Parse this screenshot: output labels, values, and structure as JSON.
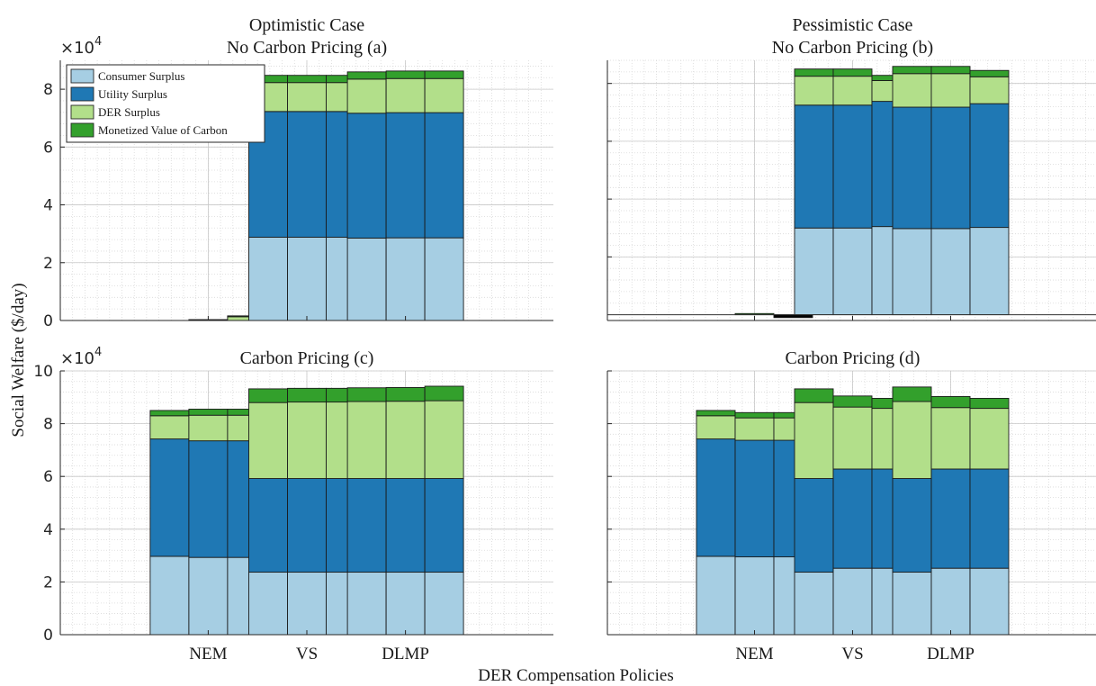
{
  "figure": {
    "ylabel": "Social Welfare ($/day)",
    "xlabel": "DER Compensation Policies"
  },
  "colors": {
    "consumer": "#a6cee3",
    "utility": "#1f78b4",
    "der": "#b2df8a",
    "carbon": "#33a02c"
  },
  "legend": [
    {
      "key": "consumer",
      "label": "Consumer Surplus"
    },
    {
      "key": "utility",
      "label": "Utility Surplus"
    },
    {
      "key": "der",
      "label": "DER Surplus"
    },
    {
      "key": "carbon",
      "label": "Monetized Value of Carbon"
    }
  ],
  "chart_data": [
    {
      "type": "bar",
      "stacked": true,
      "title_lines": [
        "Optimistic Case",
        "No Carbon Pricing (a)"
      ],
      "categories": [
        "NEM",
        "VS",
        "DLMP"
      ],
      "show_xticklabels": false,
      "show_yticklabels": true,
      "ylim": [
        0,
        9
      ],
      "yticks": [
        0,
        2,
        4,
        6,
        8
      ],
      "exponent": "4",
      "grid": true,
      "minor_grid": true,
      "legend": "top-left",
      "bars": [
        [
          {
            "consumer": 0,
            "utility": 0,
            "der": 0,
            "carbon": 0
          },
          {
            "consumer": 0,
            "utility": 0,
            "der": 0.02,
            "carbon": 0.01
          },
          {
            "consumer": 0,
            "utility": 0,
            "der": 0.13,
            "carbon": 0.03
          }
        ],
        [
          {
            "consumer": 2.88,
            "utility": 4.35,
            "der": 1.0,
            "carbon": 0.25
          },
          {
            "consumer": 2.88,
            "utility": 4.35,
            "der": 1.0,
            "carbon": 0.25
          },
          {
            "consumer": 2.88,
            "utility": 4.35,
            "der": 1.0,
            "carbon": 0.25
          }
        ],
        [
          {
            "consumer": 2.85,
            "utility": 4.32,
            "der": 1.18,
            "carbon": 0.25
          },
          {
            "consumer": 2.86,
            "utility": 4.33,
            "der": 1.18,
            "carbon": 0.26
          },
          {
            "consumer": 2.86,
            "utility": 4.33,
            "der": 1.18,
            "carbon": 0.26
          }
        ]
      ]
    },
    {
      "type": "bar",
      "stacked": true,
      "title_lines": [
        "Pessimistic Case",
        "No Carbon Pricing (b)"
      ],
      "categories": [
        "NEM",
        "VS",
        "DLMP"
      ],
      "show_xticklabels": false,
      "show_yticklabels": false,
      "ylim": [
        -0.2,
        8.8
      ],
      "yticks": [
        2,
        4,
        6,
        8
      ],
      "baseline": 0,
      "grid": true,
      "minor_grid": true,
      "bars": [
        [
          {
            "consumer": 0,
            "utility": 0,
            "der": 0,
            "carbon": 0
          },
          {
            "consumer": 0,
            "utility": 0,
            "der": 0,
            "carbon": 0.04
          },
          {
            "consumer": 0,
            "utility": 0,
            "der": 0,
            "carbon": -0.1
          }
        ],
        [
          {
            "consumer": 3.0,
            "utility": 4.25,
            "der": 1.0,
            "carbon": 0.25
          },
          {
            "consumer": 3.0,
            "utility": 4.25,
            "der": 1.0,
            "carbon": 0.25
          },
          {
            "consumer": 3.05,
            "utility": 4.33,
            "der": 0.72,
            "carbon": 0.18
          }
        ],
        [
          {
            "consumer": 2.98,
            "utility": 4.2,
            "der": 1.16,
            "carbon": 0.25
          },
          {
            "consumer": 2.98,
            "utility": 4.2,
            "der": 1.16,
            "carbon": 0.25
          },
          {
            "consumer": 3.02,
            "utility": 4.28,
            "der": 0.93,
            "carbon": 0.22
          }
        ]
      ]
    },
    {
      "type": "bar",
      "stacked": true,
      "title_lines": [
        "Carbon Pricing (c)"
      ],
      "categories": [
        "NEM",
        "VS",
        "DLMP"
      ],
      "show_xticklabels": true,
      "show_yticklabels": true,
      "ylim": [
        0,
        10
      ],
      "yticks": [
        0,
        2,
        4,
        6,
        8,
        10
      ],
      "exponent": "4",
      "grid": true,
      "minor_grid": true,
      "bars": [
        [
          {
            "consumer": 2.97,
            "utility": 4.45,
            "der": 0.88,
            "carbon": 0.2
          },
          {
            "consumer": 2.93,
            "utility": 4.42,
            "der": 0.97,
            "carbon": 0.23
          },
          {
            "consumer": 2.93,
            "utility": 4.42,
            "der": 0.97,
            "carbon": 0.23
          }
        ],
        [
          {
            "consumer": 2.37,
            "utility": 3.55,
            "der": 2.88,
            "carbon": 0.52
          },
          {
            "consumer": 2.37,
            "utility": 3.55,
            "der": 2.9,
            "carbon": 0.52
          },
          {
            "consumer": 2.37,
            "utility": 3.55,
            "der": 2.9,
            "carbon": 0.52
          }
        ],
        [
          {
            "consumer": 2.37,
            "utility": 3.55,
            "der": 2.92,
            "carbon": 0.52
          },
          {
            "consumer": 2.37,
            "utility": 3.55,
            "der": 2.93,
            "carbon": 0.52
          },
          {
            "consumer": 2.37,
            "utility": 3.55,
            "der": 2.95,
            "carbon": 0.55
          }
        ]
      ]
    },
    {
      "type": "bar",
      "stacked": true,
      "title_lines": [
        "Carbon Pricing (d)"
      ],
      "categories": [
        "NEM",
        "VS",
        "DLMP"
      ],
      "show_xticklabels": true,
      "show_yticklabels": false,
      "ylim": [
        0,
        10
      ],
      "yticks": [
        0,
        2,
        4,
        6,
        8,
        10
      ],
      "grid": true,
      "minor_grid": true,
      "bars": [
        [
          {
            "consumer": 2.97,
            "utility": 4.45,
            "der": 0.88,
            "carbon": 0.2
          },
          {
            "consumer": 2.95,
            "utility": 4.42,
            "der": 0.85,
            "carbon": 0.2
          },
          {
            "consumer": 2.95,
            "utility": 4.42,
            "der": 0.85,
            "carbon": 0.2
          }
        ],
        [
          {
            "consumer": 2.37,
            "utility": 3.55,
            "der": 2.88,
            "carbon": 0.52
          },
          {
            "consumer": 2.52,
            "utility": 3.76,
            "der": 2.35,
            "carbon": 0.42
          },
          {
            "consumer": 2.52,
            "utility": 3.76,
            "der": 2.3,
            "carbon": 0.38
          }
        ],
        [
          {
            "consumer": 2.37,
            "utility": 3.55,
            "der": 2.92,
            "carbon": 0.55
          },
          {
            "consumer": 2.52,
            "utility": 3.76,
            "der": 2.33,
            "carbon": 0.42
          },
          {
            "consumer": 2.52,
            "utility": 3.76,
            "der": 2.3,
            "carbon": 0.38
          }
        ]
      ]
    }
  ]
}
